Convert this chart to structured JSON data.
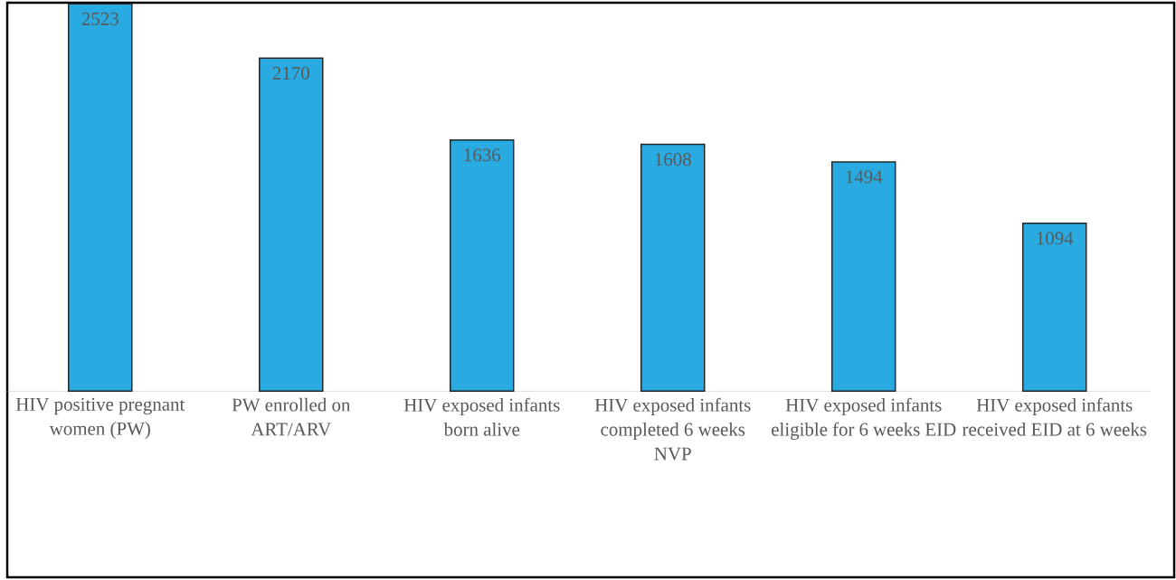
{
  "chart_data": {
    "type": "bar",
    "categories": [
      "HIV positive pregnant women (PW)",
      "PW enrolled on ART/ARV",
      "HIV exposed infants born alive",
      "HIV exposed infants completed 6 weeks NVP",
      "HIV exposed infants eligible for 6 weeks EID",
      "HIV exposed infants received EID at 6 weeks"
    ],
    "values": [
      2523,
      2170,
      1636,
      1608,
      1494,
      1094
    ],
    "color": "#29abe2",
    "tick_labels": "x",
    "data_labels": true,
    "grid": false
  }
}
